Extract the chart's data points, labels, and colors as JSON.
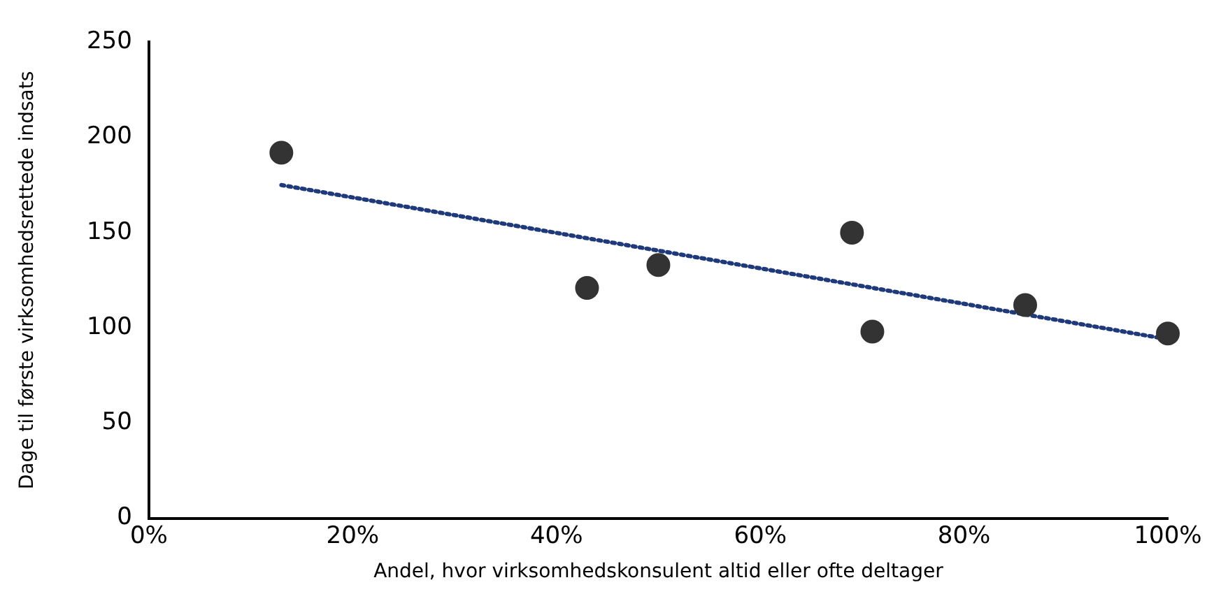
{
  "chart_data": {
    "type": "scatter",
    "xlabel": "Andel, hvor virksomhedskonsulent altid eller ofte deltager",
    "ylabel": "Dage til første virksomhedsrettede indsats",
    "xlim": [
      0,
      100
    ],
    "xticks": [
      {
        "value": 0,
        "label": "0%"
      },
      {
        "value": 20,
        "label": "20%"
      },
      {
        "value": 40,
        "label": "40%"
      },
      {
        "value": 60,
        "label": "60%"
      },
      {
        "value": 80,
        "label": "80%"
      },
      {
        "value": 100,
        "label": "100%"
      }
    ],
    "ylim": [
      0,
      250
    ],
    "yticks": [
      0,
      50,
      100,
      150,
      200,
      250
    ],
    "grid": false,
    "marker": "circle",
    "series": [
      {
        "color": "#333333",
        "x": [
          13,
          43,
          50,
          69,
          71,
          86,
          100
        ],
        "values": [
          192,
          121,
          133,
          150,
          98,
          112,
          97
        ]
      },
      {
        "type": "line",
        "color": "#1f3a7a",
        "line_style": "dotted",
        "marker": "none",
        "x": [
          13,
          100
        ],
        "values": [
          175,
          94
        ]
      }
    ]
  }
}
